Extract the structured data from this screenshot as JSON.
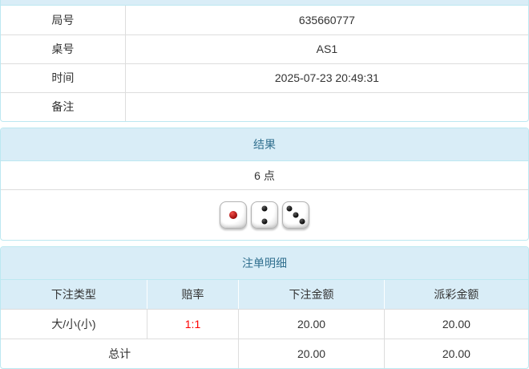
{
  "theme": {
    "heading_bg": "#d9edf7",
    "heading_text": "#31708f",
    "panel_border": "#bce8f1",
    "row_divider": "#dddddd",
    "body_text": "#333333",
    "odds_red": "#ff0000"
  },
  "game_info": {
    "rows": [
      {
        "label": "局号",
        "value": "635660777"
      },
      {
        "label": "桌号",
        "value": "AS1"
      },
      {
        "label": "时间",
        "value": "2025-07-23 20:49:31"
      },
      {
        "label": "备注",
        "value": ""
      }
    ]
  },
  "result": {
    "heading": "结果",
    "points": "6 点",
    "dice": [
      1,
      2,
      3
    ]
  },
  "bet_details": {
    "heading": "注单明细",
    "columns": [
      "下注类型",
      "赔率",
      "下注金额",
      "派彩金额"
    ],
    "rows": [
      {
        "bet_type": "大/小(小)",
        "odds": "1:1",
        "bet_amount": "20.00",
        "payout": "20.00"
      }
    ],
    "total": {
      "label": "总计",
      "bet_amount": "20.00",
      "payout": "20.00"
    }
  }
}
